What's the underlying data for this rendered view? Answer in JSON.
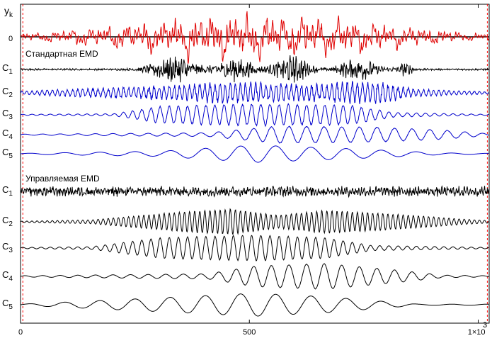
{
  "chart_data": {
    "type": "line",
    "title": "",
    "xlim": [
      0,
      1024
    ],
    "x_ticks": [
      {
        "value": 0,
        "label": "0"
      },
      {
        "value": 500,
        "label": "500"
      },
      {
        "value": 1000,
        "label": "1×10"
      }
    ],
    "x_exponent": "3",
    "y_axis_label": {
      "main": "y",
      "sub": "k"
    },
    "y_tick_label": "0",
    "boundary_markers_x": [
      5,
      1020
    ],
    "colors": {
      "signal": "#e00000",
      "standard": "#0000cc",
      "controlled": "#000000",
      "markers": "#ff0000"
    },
    "sections": [
      {
        "title": "Стандартная EMD"
      },
      {
        "title": "Управляемая EMD"
      }
    ],
    "series": [
      {
        "name": "y",
        "group": "signal",
        "label": "y",
        "sub": "k",
        "components": [
          [
            0.4,
            0.013,
            0
          ],
          [
            0.5,
            0.026,
            1
          ],
          [
            0.45,
            0.05,
            2
          ],
          [
            0.4,
            0.09,
            3
          ],
          [
            0.6,
            0.16,
            4
          ]
        ],
        "noise": 0.35,
        "envelope": [
          [
            0.04,
            0.1
          ],
          [
            0.4,
            0.55
          ],
          [
            0.6,
            0.55
          ],
          [
            0.96,
            0.1
          ]
        ],
        "amplitude": 1.0
      },
      {
        "name": "C1",
        "group": "standard",
        "label": "C",
        "sub": "1",
        "color": "#000000",
        "components": [
          [
            0.4,
            0.16,
            0
          ]
        ],
        "noise": 1.0,
        "bursts": [
          [
            0.33,
            0.05,
            3.5
          ],
          [
            0.46,
            0.04,
            3.0
          ],
          [
            0.58,
            0.04,
            3.5
          ],
          [
            0.72,
            0.04,
            3.0
          ],
          [
            0.82,
            0.02,
            1.5
          ]
        ],
        "amplitude": 1.0
      },
      {
        "name": "C2",
        "group": "standard",
        "label": "C",
        "sub": "2",
        "color": "#0000cc",
        "components": [
          [
            1.0,
            0.09,
            0
          ]
        ],
        "noise": 0.35,
        "envelope": [
          [
            0.0,
            0.15
          ],
          [
            0.3,
            0.6
          ],
          [
            0.45,
            0.9
          ],
          [
            0.62,
            0.7
          ],
          [
            0.75,
            1.0
          ],
          [
            0.85,
            0.3
          ],
          [
            1.0,
            0.1
          ]
        ],
        "amplitude": 1.0
      },
      {
        "name": "C3",
        "group": "standard",
        "label": "C",
        "sub": "3",
        "color": "#0000cc",
        "components": [
          [
            1.0,
            0.05,
            0
          ]
        ],
        "noise": 0.1,
        "envelope": [
          [
            0.0,
            0.05
          ],
          [
            0.2,
            0.1
          ],
          [
            0.3,
            0.8
          ],
          [
            0.5,
            1.0
          ],
          [
            0.7,
            0.9
          ],
          [
            0.8,
            0.2
          ],
          [
            1.0,
            0.05
          ]
        ],
        "amplitude": 1.0
      },
      {
        "name": "C4",
        "group": "standard",
        "label": "C",
        "sub": "4",
        "color": "#0000cc",
        "components": [
          [
            1.0,
            0.026,
            0
          ]
        ],
        "noise": 0.05,
        "envelope": [
          [
            0.0,
            0.05
          ],
          [
            0.4,
            0.2
          ],
          [
            0.55,
            0.9
          ],
          [
            0.75,
            0.8
          ],
          [
            0.9,
            0.5
          ],
          [
            1.0,
            0.1
          ]
        ],
        "amplitude": 1.0
      },
      {
        "name": "C5",
        "group": "standard",
        "label": "C",
        "sub": "5",
        "color": "#0000cc",
        "components": [
          [
            1.0,
            0.013,
            0
          ]
        ],
        "noise": 0.0,
        "envelope": [
          [
            0.0,
            0.05
          ],
          [
            0.3,
            0.3
          ],
          [
            0.5,
            1.0
          ],
          [
            0.7,
            0.6
          ],
          [
            0.9,
            0.1
          ],
          [
            1.0,
            0.05
          ]
        ],
        "amplitude": 1.0
      },
      {
        "name": "C1",
        "group": "controlled",
        "label": "C",
        "sub": "1",
        "color": "#000000",
        "components": [
          [
            0.5,
            0.16,
            0
          ]
        ],
        "noise": 1.0,
        "envelope": [
          [
            0.0,
            1.0
          ],
          [
            1.0,
            1.0
          ]
        ],
        "amplitude": 0.85
      },
      {
        "name": "C2",
        "group": "controlled",
        "label": "C",
        "sub": "2",
        "color": "#000000",
        "components": [
          [
            1.0,
            0.09,
            0
          ]
        ],
        "noise": 0.05,
        "envelope": [
          [
            0.0,
            0.05
          ],
          [
            0.15,
            0.15
          ],
          [
            0.35,
            0.8
          ],
          [
            0.45,
            1.0
          ],
          [
            0.55,
            0.5
          ],
          [
            0.65,
            0.9
          ],
          [
            0.8,
            0.6
          ],
          [
            0.95,
            0.2
          ],
          [
            1.0,
            0.1
          ]
        ],
        "amplitude": 1.0
      },
      {
        "name": "C3",
        "group": "controlled",
        "label": "C",
        "sub": "3",
        "color": "#000000",
        "components": [
          [
            1.0,
            0.05,
            0
          ]
        ],
        "noise": 0.03,
        "envelope": [
          [
            0.0,
            0.05
          ],
          [
            0.15,
            0.1
          ],
          [
            0.3,
            0.8
          ],
          [
            0.5,
            1.0
          ],
          [
            0.65,
            0.8
          ],
          [
            0.75,
            0.2
          ],
          [
            1.0,
            0.05
          ]
        ],
        "amplitude": 1.0
      },
      {
        "name": "C4",
        "group": "controlled",
        "label": "C",
        "sub": "4",
        "color": "#000000",
        "components": [
          [
            1.0,
            0.026,
            0
          ]
        ],
        "noise": 0.02,
        "envelope": [
          [
            0.0,
            0.05
          ],
          [
            0.4,
            0.2
          ],
          [
            0.5,
            0.8
          ],
          [
            0.65,
            1.0
          ],
          [
            0.8,
            0.5
          ],
          [
            0.9,
            0.1
          ],
          [
            1.0,
            0.05
          ]
        ],
        "amplitude": 1.0
      },
      {
        "name": "C5",
        "group": "controlled",
        "label": "C",
        "sub": "5",
        "color": "#000000",
        "components": [
          [
            1.0,
            0.013,
            0
          ]
        ],
        "noise": 0.0,
        "envelope": [
          [
            0.0,
            0.05
          ],
          [
            0.35,
            0.7
          ],
          [
            0.5,
            1.0
          ],
          [
            0.65,
            0.7
          ],
          [
            0.85,
            0.05
          ],
          [
            1.0,
            0.05
          ]
        ],
        "amplitude": 1.0
      }
    ]
  }
}
